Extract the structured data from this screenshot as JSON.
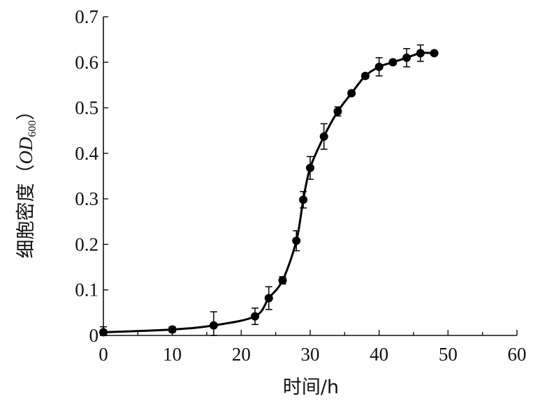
{
  "chart_data": {
    "type": "line",
    "title": "",
    "xlabel": "时间/h",
    "ylabel_main": "细胞密度",
    "ylabel_paren_open": "（",
    "ylabel_italic": "OD",
    "ylabel_sub": "600",
    "ylabel_paren_close": "）",
    "xlim": [
      0,
      60
    ],
    "ylim": [
      0,
      0.7
    ],
    "xticks": [
      0,
      10,
      20,
      30,
      40,
      50,
      60
    ],
    "xtick_labels": [
      "0",
      "10",
      "20",
      "30",
      "40",
      "50",
      "60"
    ],
    "yticks": [
      0,
      0.1,
      0.2,
      0.3,
      0.4,
      0.5,
      0.6,
      0.7
    ],
    "ytick_labels": [
      "0",
      "0.1",
      "0.2",
      "0.3",
      "0.4",
      "0.5",
      "0.6",
      "0.7"
    ],
    "grid": false,
    "legend": "none",
    "series": [
      {
        "color": "#000000",
        "marker": "circle",
        "x": [
          0,
          10,
          16,
          22,
          24,
          26,
          28,
          29,
          30,
          32,
          34,
          36,
          38,
          40,
          42,
          44,
          46,
          48
        ],
        "y": [
          0.007,
          0.013,
          0.022,
          0.042,
          0.082,
          0.121,
          0.208,
          0.298,
          0.368,
          0.437,
          0.492,
          0.532,
          0.57,
          0.59,
          0.6,
          0.61,
          0.62,
          0.62
        ],
        "err": [
          0.012,
          0.006,
          0.03,
          0.018,
          0.025,
          0.008,
          0.022,
          0.018,
          0.025,
          0.028,
          0.01,
          0.005,
          0.005,
          0.02,
          0.005,
          0.02,
          0.018,
          0.0
        ]
      }
    ]
  }
}
